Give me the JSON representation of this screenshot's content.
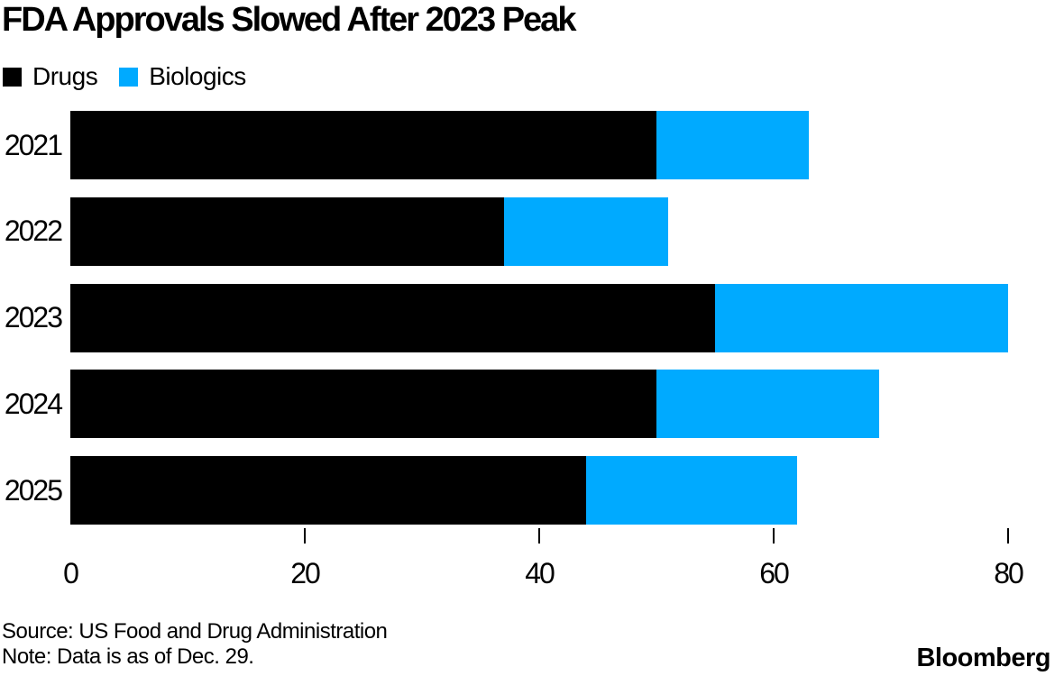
{
  "title": "FDA Approvals Slowed After 2023 Peak",
  "legend": [
    {
      "label": "Drugs",
      "color": "#000000"
    },
    {
      "label": "Biologics",
      "color": "#00aaff"
    }
  ],
  "chart_data": {
    "type": "bar",
    "orientation": "horizontal",
    "stacked": true,
    "title": "FDA Approvals Slowed After 2023 Peak",
    "categories": [
      "2021",
      "2022",
      "2023",
      "2024",
      "2025"
    ],
    "series": [
      {
        "name": "Drugs",
        "color": "#000000",
        "values": [
          50,
          37,
          55,
          50,
          44
        ]
      },
      {
        "name": "Biologics",
        "color": "#00aaff",
        "values": [
          13,
          14,
          25,
          19,
          18
        ]
      }
    ],
    "totals": [
      63,
      51,
      80,
      69,
      62
    ],
    "xticks": [
      0,
      20,
      40,
      60,
      80
    ],
    "xlim": [
      0,
      80.2
    ],
    "xlabel": "",
    "ylabel": "",
    "grid": false,
    "legend_position": "top-left"
  },
  "footer": {
    "source_line": "Source: US Food and Drug Administration",
    "note_line": "Note: Data is as of Dec. 29.",
    "brand": "Bloomberg"
  }
}
